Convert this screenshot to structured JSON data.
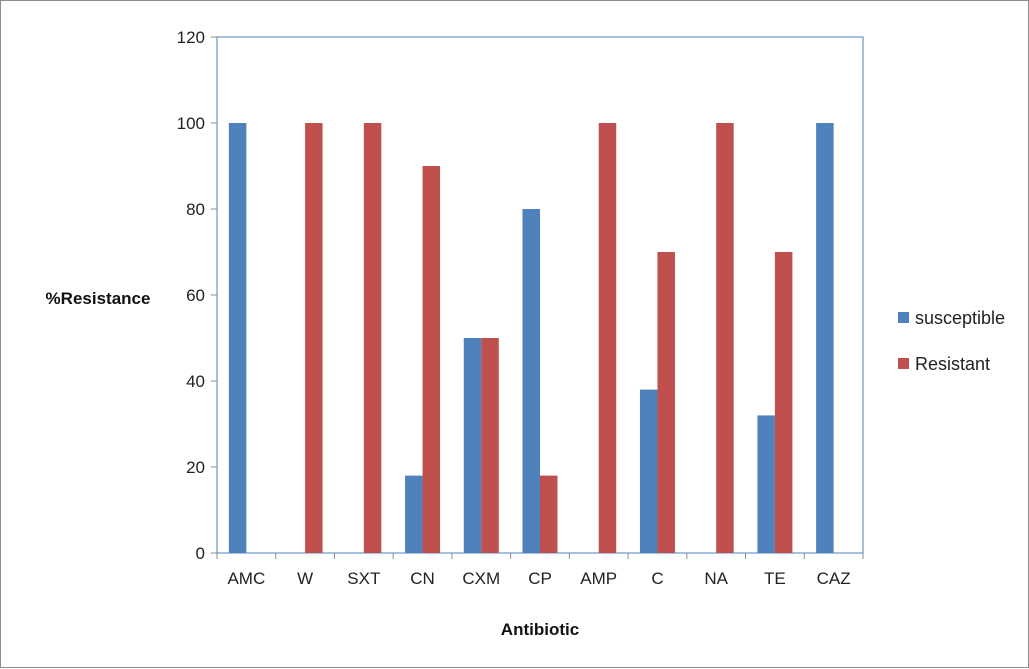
{
  "chart_data": {
    "type": "bar",
    "title": "",
    "xlabel": "Antibiotic",
    "ylabel": "%Resistance",
    "ylim": [
      0,
      120
    ],
    "yticks": [
      0,
      20,
      40,
      60,
      80,
      100,
      120
    ],
    "grid": false,
    "legend_position": "right",
    "categories": [
      "AMC",
      "W",
      "SXT",
      "CN",
      "CXM",
      "CP",
      "AMP",
      "C",
      "NA",
      "TE",
      "CAZ"
    ],
    "series": [
      {
        "name": "susceptible",
        "color": "#4f81bd",
        "values": [
          100,
          0,
          0,
          18,
          50,
          80,
          0,
          38,
          0,
          32,
          100
        ]
      },
      {
        "name": "Resistant",
        "color": "#c0504d",
        "values": [
          0,
          100,
          100,
          90,
          50,
          18,
          100,
          70,
          100,
          70,
          0
        ]
      }
    ]
  }
}
